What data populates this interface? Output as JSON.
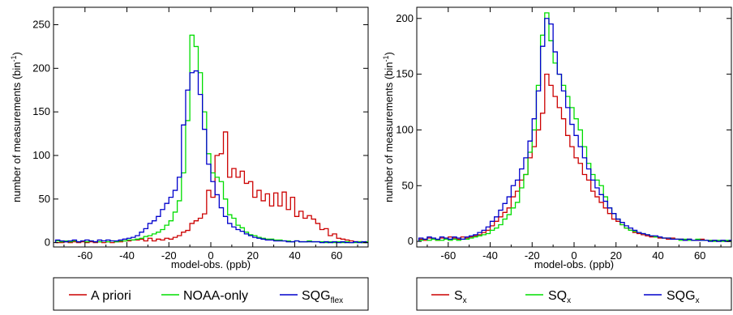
{
  "chart_data": [
    {
      "type": "histogram",
      "xlabel": "model-obs. (ppb)",
      "ylabel": "number of measurements (bin",
      "ylabel_sup": "-1",
      "ylabel_close": ")",
      "xlim": [
        -75,
        75
      ],
      "ylim": [
        -5,
        270
      ],
      "xticks": [
        -60,
        -40,
        -20,
        0,
        20,
        40,
        60
      ],
      "yticks": [
        0,
        50,
        100,
        150,
        200,
        250
      ],
      "bin_width": 2,
      "bins_start": -74,
      "series": [
        {
          "name": "A priori",
          "color": "#cc0000",
          "values": [
            0,
            0,
            1,
            0,
            1,
            0,
            1,
            0,
            1,
            0,
            1,
            0,
            1,
            0,
            1,
            1,
            2,
            2,
            3,
            3,
            4,
            2,
            5,
            2,
            4,
            3,
            5,
            4,
            6,
            8,
            12,
            14,
            22,
            25,
            28,
            33,
            60,
            52,
            100,
            102,
            127,
            75,
            85,
            75,
            82,
            68,
            70,
            52,
            60,
            48,
            56,
            42,
            57,
            42,
            58,
            38,
            52,
            30,
            36,
            28,
            31,
            27,
            22,
            15,
            16,
            8,
            10,
            5,
            4,
            3,
            2,
            1,
            1,
            0,
            1
          ]
        },
        {
          "name": "NOAA-only",
          "color": "#00dd00",
          "values": [
            2,
            1,
            2,
            1,
            2,
            1,
            2,
            1,
            2,
            1,
            1,
            2,
            1,
            2,
            1,
            2,
            2,
            3,
            3,
            4,
            5,
            7,
            8,
            10,
            12,
            15,
            20,
            25,
            35,
            48,
            80,
            140,
            238,
            225,
            195,
            150,
            102,
            80,
            75,
            70,
            50,
            32,
            28,
            20,
            17,
            12,
            9,
            8,
            6,
            5,
            4,
            4,
            3,
            3,
            2,
            2,
            1,
            2,
            1,
            1,
            2,
            1,
            1,
            1,
            0,
            1,
            0,
            1,
            0,
            1,
            0,
            0,
            1,
            0,
            1
          ]
        },
        {
          "name": "SQG",
          "name_sub": "flex",
          "color": "#0000cc",
          "values": [
            3,
            2,
            1,
            2,
            3,
            1,
            2,
            3,
            2,
            1,
            3,
            2,
            3,
            2,
            2,
            3,
            4,
            5,
            6,
            8,
            12,
            16,
            22,
            25,
            30,
            38,
            45,
            52,
            60,
            75,
            135,
            175,
            195,
            197,
            170,
            130,
            90,
            70,
            55,
            40,
            30,
            22,
            18,
            15,
            13,
            10,
            8,
            6,
            5,
            4,
            3,
            3,
            2,
            2,
            2,
            1,
            1,
            2,
            1,
            1,
            1,
            1,
            1,
            0,
            1,
            0,
            1,
            0,
            1,
            0,
            0,
            1,
            0,
            1,
            0
          ]
        }
      ],
      "legend": "bottom"
    },
    {
      "type": "histogram",
      "xlabel": "model-obs. (ppb)",
      "ylabel": "number of measurements (bin",
      "ylabel_sup": "-1",
      "ylabel_close": ")",
      "xlim": [
        -75,
        75
      ],
      "ylim": [
        -5,
        210
      ],
      "xticks": [
        -60,
        -40,
        -20,
        0,
        20,
        40,
        60
      ],
      "yticks": [
        0,
        50,
        100,
        150,
        200
      ],
      "bin_width": 2,
      "bins_start": -74,
      "series": [
        {
          "name": "S",
          "name_sub": "x",
          "color": "#cc0000",
          "values": [
            2,
            1,
            3,
            2,
            1,
            3,
            2,
            4,
            3,
            2,
            4,
            3,
            4,
            5,
            6,
            8,
            10,
            14,
            18,
            22,
            26,
            30,
            40,
            45,
            55,
            60,
            75,
            85,
            100,
            115,
            150,
            140,
            130,
            120,
            110,
            95,
            85,
            75,
            70,
            60,
            55,
            45,
            40,
            35,
            30,
            25,
            20,
            18,
            15,
            12,
            10,
            8,
            7,
            6,
            5,
            4,
            4,
            3,
            3,
            2,
            3,
            2,
            2,
            1,
            2,
            1,
            1,
            2,
            1,
            1,
            1,
            0,
            1,
            0,
            1
          ]
        },
        {
          "name": "SQ",
          "name_sub": "x",
          "color": "#00dd00",
          "values": [
            1,
            2,
            1,
            2,
            1,
            1,
            2,
            1,
            2,
            1,
            2,
            2,
            3,
            4,
            5,
            6,
            7,
            10,
            12,
            15,
            20,
            24,
            30,
            35,
            48,
            60,
            80,
            100,
            140,
            185,
            205,
            180,
            160,
            150,
            140,
            130,
            120,
            110,
            100,
            85,
            70,
            60,
            55,
            50,
            40,
            30,
            25,
            20,
            15,
            12,
            10,
            9,
            8,
            7,
            6,
            5,
            4,
            4,
            3,
            3,
            2,
            2,
            1,
            2,
            1,
            1,
            2,
            1,
            1,
            1,
            0,
            1,
            0,
            1,
            0
          ]
        },
        {
          "name": "SQG",
          "name_sub": "x",
          "color": "#0000cc",
          "values": [
            3,
            2,
            4,
            3,
            2,
            4,
            3,
            2,
            4,
            3,
            2,
            4,
            5,
            6,
            8,
            10,
            13,
            18,
            22,
            28,
            34,
            40,
            50,
            55,
            65,
            75,
            90,
            110,
            135,
            175,
            200,
            195,
            170,
            150,
            135,
            120,
            105,
            95,
            85,
            75,
            65,
            55,
            48,
            42,
            36,
            30,
            25,
            20,
            17,
            14,
            12,
            10,
            8,
            7,
            6,
            5,
            5,
            4,
            3,
            3,
            2,
            2,
            2,
            1,
            2,
            1,
            1,
            1,
            1,
            0,
            1,
            0,
            1,
            0,
            1
          ]
        }
      ],
      "legend": "bottom"
    }
  ]
}
